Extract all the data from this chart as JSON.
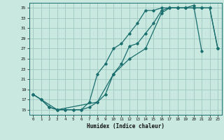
{
  "xlabel": "Humidex (Indice chaleur)",
  "bg_color": "#c8e8e0",
  "line_color": "#1a6e6e",
  "grid_color": "#a0c8c0",
  "xlim": [
    -0.5,
    23.5
  ],
  "ylim": [
    14,
    36
  ],
  "yticks": [
    15,
    17,
    19,
    21,
    23,
    25,
    27,
    29,
    31,
    33,
    35
  ],
  "xticks": [
    0,
    1,
    2,
    3,
    4,
    5,
    6,
    7,
    8,
    9,
    10,
    11,
    12,
    13,
    14,
    15,
    16,
    17,
    18,
    19,
    20,
    21,
    22,
    23
  ],
  "line1_x": [
    0,
    1,
    2,
    3,
    4,
    5,
    6,
    7,
    8,
    9,
    10,
    11,
    12,
    13,
    14,
    15,
    16,
    17,
    18,
    19,
    20,
    21
  ],
  "line1_y": [
    18,
    17,
    15.5,
    15,
    15,
    15,
    15,
    15.5,
    16.5,
    18,
    22,
    24,
    27.5,
    28,
    30,
    32,
    34.5,
    35,
    35,
    35,
    35.5,
    26.5
  ],
  "line2_x": [
    0,
    1,
    2,
    3,
    4,
    5,
    6,
    7,
    8,
    9,
    10,
    11,
    12,
    13,
    14,
    15,
    16,
    17,
    18,
    19,
    20,
    21,
    22,
    23
  ],
  "line2_y": [
    18,
    17,
    15.5,
    15,
    15,
    15,
    15,
    16.5,
    22,
    24,
    27,
    28,
    30,
    32,
    34.5,
    34.5,
    35,
    35,
    35,
    35,
    35,
    35,
    35,
    27
  ],
  "line3_x": [
    0,
    3,
    8,
    10,
    12,
    14,
    16,
    17,
    18,
    19,
    20,
    21,
    22,
    23
  ],
  "line3_y": [
    18,
    15,
    16.5,
    22,
    25,
    27,
    34,
    35,
    35,
    35,
    35,
    35,
    35,
    27
  ]
}
